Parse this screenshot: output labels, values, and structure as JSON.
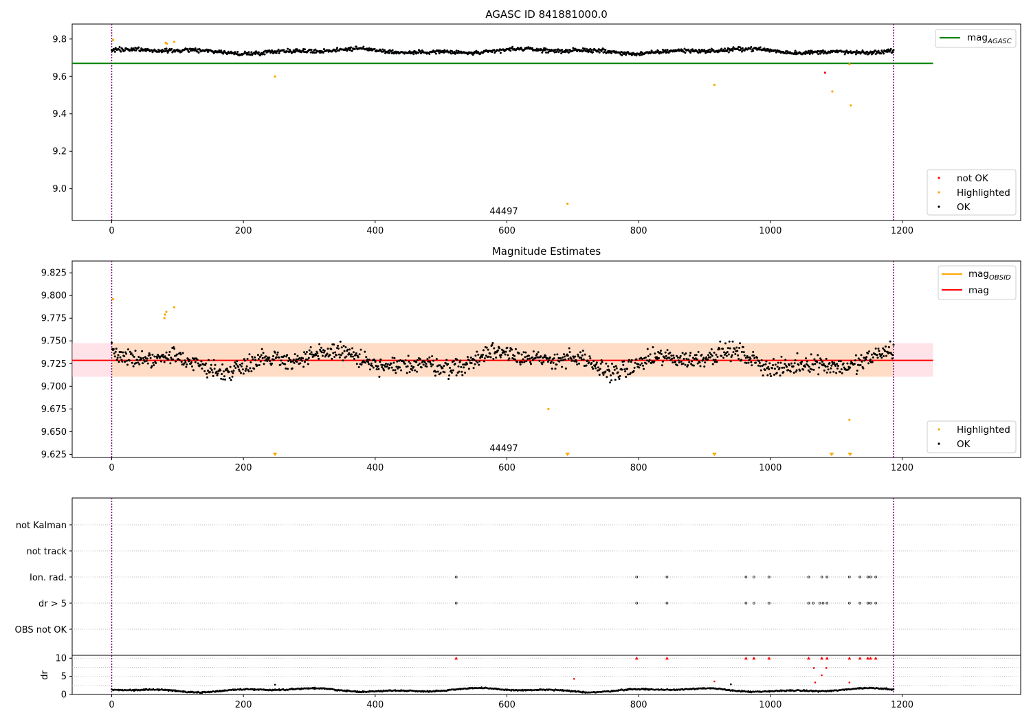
{
  "page": {
    "background": "#ffffff"
  },
  "colors": {
    "ok": "#000000",
    "highlighted": "#ffa500",
    "not_ok": "#ff0000",
    "agasc_line": "#008000",
    "obsid_line": "#ffa500",
    "mean_line": "#ff0000",
    "band_fill": "#ffdab9",
    "band_edge": "#ffc0cb",
    "vline": "#800080"
  },
  "chart_data": [
    {
      "type": "scatter",
      "title": "AGASC ID 841881000.0",
      "xlim": [
        -60,
        1380
      ],
      "ylim": [
        8.83,
        9.88
      ],
      "xticks": [
        0,
        200,
        400,
        600,
        800,
        1000,
        1200
      ],
      "yticks": [
        9.0,
        9.2,
        9.4,
        9.6,
        9.8
      ],
      "ytick_labels": [
        "9.0",
        "9.2",
        "9.4",
        "9.6",
        "9.8"
      ],
      "annotation": {
        "text": "44497",
        "x": 595
      },
      "vlines": [
        0,
        1187
      ],
      "hline": {
        "name": "mag_AGASC",
        "y": 9.67,
        "x": [
          -60,
          1247
        ]
      },
      "ok_trend": {
        "base": 9.735,
        "ripple": 0.014,
        "noise": 0.018,
        "x_range": [
          0,
          1187
        ],
        "n": 1187
      },
      "highlighted_points": [
        {
          "x": 2,
          "y": 9.795
        },
        {
          "x": 82,
          "y": 9.78
        },
        {
          "x": 84,
          "y": 9.775
        },
        {
          "x": 95,
          "y": 9.785
        },
        {
          "x": 248,
          "y": 9.6
        },
        {
          "x": 692,
          "y": 8.92
        },
        {
          "x": 915,
          "y": 9.555
        },
        {
          "x": 1094,
          "y": 9.52
        },
        {
          "x": 1120,
          "y": 9.665
        },
        {
          "x": 1122,
          "y": 9.445
        }
      ],
      "not_ok_points": [
        {
          "x": 1083,
          "y": 9.62
        }
      ],
      "legend_upper": [
        {
          "label": "mag",
          "sub": "AGASC",
          "color": "#008000"
        }
      ],
      "legend_lower": [
        {
          "label": "not OK",
          "color": "#ff0000"
        },
        {
          "label": "Highlighted",
          "color": "#ffa500"
        },
        {
          "label": "OK",
          "color": "#000000"
        }
      ]
    },
    {
      "type": "scatter",
      "title": "Magnitude Estimates",
      "xlim": [
        -60,
        1380
      ],
      "ylim": [
        9.6215,
        9.838
      ],
      "xticks": [
        0,
        200,
        400,
        600,
        800,
        1000,
        1200
      ],
      "yticks": [
        9.625,
        9.65,
        9.675,
        9.7,
        9.725,
        9.75,
        9.775,
        9.8,
        9.825
      ],
      "ytick_labels": [
        "9.625",
        "9.650",
        "9.675",
        "9.700",
        "9.725",
        "9.750",
        "9.775",
        "9.800",
        "9.825"
      ],
      "annotation": {
        "text": "44497",
        "x": 595
      },
      "vlines": [
        0,
        1187
      ],
      "mean": {
        "name": "mag",
        "y": 9.7285
      },
      "band": {
        "y": [
          9.7105,
          9.7475
        ],
        "x": [
          -60,
          1247
        ],
        "obsid_range": [
          0,
          1187
        ]
      },
      "ok_trend": {
        "base": 9.728,
        "ripple": 0.012,
        "noise": 0.017,
        "x_range": [
          0,
          1187
        ],
        "n": 1187
      },
      "highlighted_points": [
        {
          "x": 2,
          "y": 9.796
        },
        {
          "x": 80,
          "y": 9.775
        },
        {
          "x": 81,
          "y": 9.779
        },
        {
          "x": 83,
          "y": 9.782
        },
        {
          "x": 95,
          "y": 9.787
        },
        {
          "x": 663,
          "y": 9.675
        },
        {
          "x": 1120,
          "y": 9.663
        }
      ],
      "clipped_markers": [
        248,
        692,
        915,
        1093,
        1121
      ],
      "legend_upper": [
        {
          "label": "mag",
          "sub": "OBSID",
          "color": "#ffa500"
        },
        {
          "label": "mag",
          "color": "#ff0000"
        }
      ],
      "legend_lower": [
        {
          "label": "Highlighted",
          "color": "#ffa500"
        },
        {
          "label": "OK",
          "color": "#000000"
        }
      ]
    },
    {
      "type": "scatter",
      "title": "",
      "xlim": [
        -60,
        1380
      ],
      "xticks": [
        0,
        200,
        400,
        600,
        800,
        1000,
        1200
      ],
      "vlines": [
        0,
        1187
      ],
      "flag_rows": [
        "not Kalman",
        "not track",
        "Ion. rad.",
        "dr > 5",
        "OBS not OK"
      ],
      "flag_points": {
        "Ion. rad.": [
          523,
          797,
          843,
          963,
          975,
          998,
          1058,
          1078,
          1086,
          1120,
          1136,
          1148,
          1152,
          1160
        ],
        "dr > 5": [
          523,
          797,
          843,
          963,
          975,
          998,
          1058,
          1065,
          1075,
          1080,
          1086,
          1120,
          1136,
          1148,
          1152,
          1160
        ]
      }
    },
    {
      "type": "scatter",
      "title": "",
      "ylabel": "dr",
      "xlim": [
        -60,
        1380
      ],
      "ylim": [
        0,
        10.8
      ],
      "yticks": [
        0,
        5,
        10
      ],
      "ytick_labels": [
        "0",
        "5",
        "10"
      ],
      "xticks": [
        0,
        200,
        400,
        600,
        800,
        1000,
        1200
      ],
      "xtick_labels": [
        "0",
        "200",
        "400",
        "600",
        "800",
        "1000",
        "1200"
      ],
      "vlines": [
        0,
        1187
      ],
      "ok_trend": {
        "base": 1.2,
        "ripple": 0.6,
        "noise": 0.3,
        "x_range": [
          0,
          1187
        ],
        "n": 1187
      },
      "capped_points": [
        523,
        797,
        843,
        963,
        975,
        998,
        1058,
        1078,
        1086,
        1120,
        1136,
        1148,
        1152,
        1160
      ],
      "not_ok_points": [
        {
          "x": 702,
          "y": 4.3
        },
        {
          "x": 915,
          "y": 3.6
        },
        {
          "x": 1066,
          "y": 7.3
        },
        {
          "x": 1068,
          "y": 3.3
        },
        {
          "x": 1078,
          "y": 5.3
        },
        {
          "x": 1085,
          "y": 7.3
        },
        {
          "x": 1120,
          "y": 3.3
        }
      ],
      "extra_ok_points": [
        {
          "x": 248,
          "y": 2.7
        },
        {
          "x": 940,
          "y": 2.8
        }
      ]
    }
  ]
}
